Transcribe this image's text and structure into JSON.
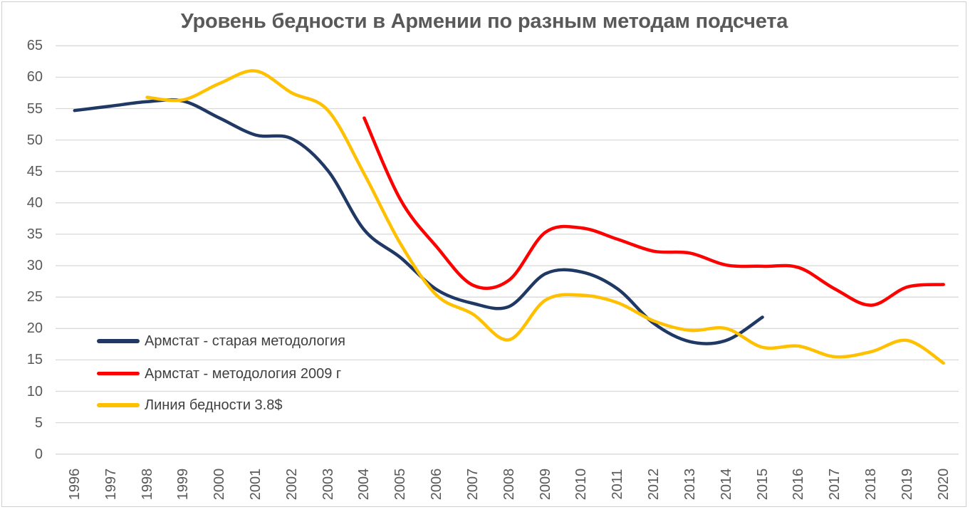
{
  "chart_data": {
    "type": "line",
    "title": "Уровень бедности в Армении по разным методам подсчета",
    "smooth": true,
    "grid": "horizontal",
    "legend_position": "inside-bottom-left",
    "text_color": "#595959",
    "legend_text_color": "#404040",
    "gridline_color": "#d9d9d9",
    "border_color": "#d0cece",
    "categories": [
      "1996",
      "1997",
      "1998",
      "1999",
      "2000",
      "2001",
      "2002",
      "2003",
      "2004",
      "2005",
      "2006",
      "2007",
      "2008",
      "2009",
      "2010",
      "2011",
      "2012",
      "2013",
      "2014",
      "2015",
      "2016",
      "2017",
      "2018",
      "2019",
      "2020"
    ],
    "series": [
      {
        "name": "Армстат - старая методология",
        "color": "#1F3864",
        "values": [
          54.7,
          55.4,
          56.1,
          56.2,
          53.5,
          50.8,
          50.2,
          45.1,
          35.7,
          31.3,
          26.2,
          24.0,
          23.5,
          28.7,
          29.0,
          26.3,
          20.8,
          17.9,
          18.1,
          21.8,
          null,
          null,
          null,
          null,
          null
        ]
      },
      {
        "name": "Армстат - методология 2009 г",
        "color": "#FF0000",
        "values": [
          null,
          null,
          null,
          null,
          null,
          null,
          null,
          null,
          53.5,
          40.5,
          33.0,
          26.9,
          27.7,
          35.3,
          36.0,
          34.2,
          32.3,
          32.0,
          30.1,
          29.9,
          29.7,
          26.3,
          23.7,
          26.6,
          27.0
        ]
      },
      {
        "name": "Линия бедности 3.8$",
        "color": "#FFC000",
        "values": [
          null,
          null,
          56.8,
          56.4,
          59.0,
          61.0,
          57.5,
          54.7,
          44.6,
          33.5,
          25.3,
          22.3,
          18.2,
          24.5,
          25.3,
          24.1,
          21.2,
          19.7,
          20.0,
          17.0,
          17.2,
          15.5,
          16.3,
          18.1,
          14.5
        ]
      }
    ],
    "yaxis": {
      "min": 0,
      "max": 65,
      "step": 5,
      "tick_labels": [
        "0",
        "5",
        "10",
        "15",
        "20",
        "25",
        "30",
        "35",
        "40",
        "45",
        "50",
        "55",
        "60",
        "65"
      ]
    },
    "xaxis": {
      "tick_labels_rotated": true
    }
  }
}
